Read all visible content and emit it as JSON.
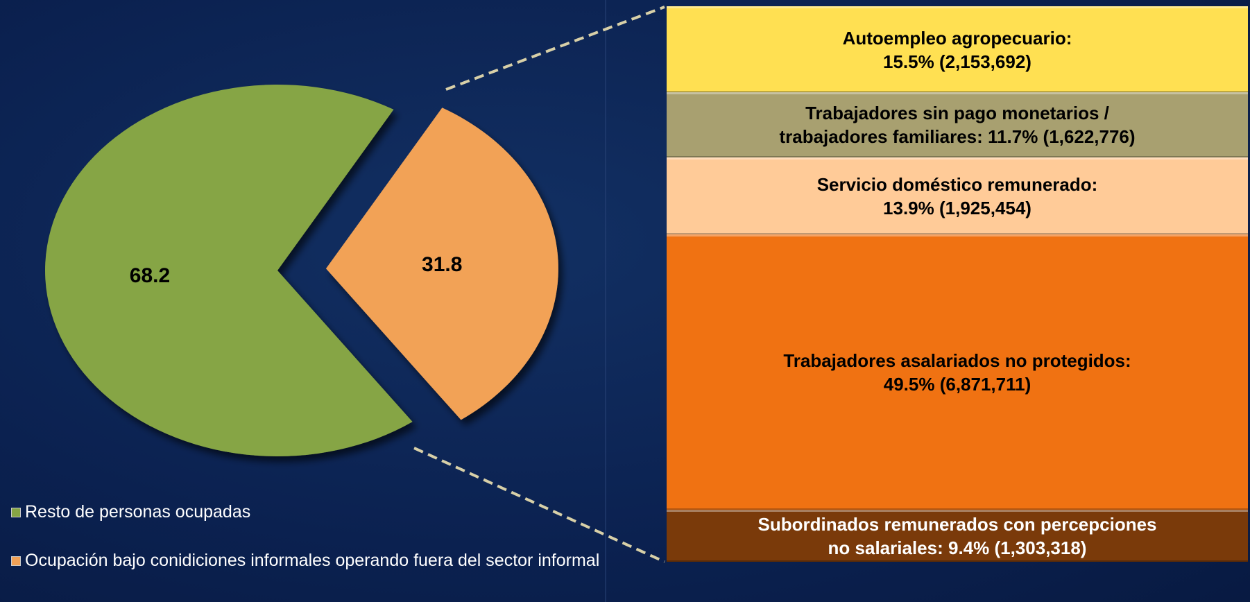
{
  "chart_data": [
    {
      "type": "pie",
      "categories": [
        "Resto de personas ocupadas",
        "Ocupación bajo conidiciones informales operando fuera del sector informal"
      ],
      "values": [
        68.2,
        31.8
      ],
      "colors": [
        "#86a544",
        "#f2a257"
      ],
      "legend": "bottom-left"
    },
    {
      "type": "bar",
      "stacked": true,
      "series": [
        {
          "name": "Autoempleo agropecuario:",
          "color": "#ffe052",
          "values": [
            15.5
          ],
          "value_labels": [
            "15.5% (2,153,692)"
          ]
        },
        {
          "name": "Trabajadores sin pago monetarios / trabajadores familiares:",
          "color": "#a8a070",
          "values": [
            11.7
          ],
          "value_labels": [
            "11.7% (1,622,776)"
          ]
        },
        {
          "name": "Servicio doméstico remunerado:",
          "color": "#ffcb98",
          "values": [
            13.9
          ],
          "value_labels": [
            "13.9% (1,925,454)"
          ]
        },
        {
          "name": "Trabajadores asalariados no protegidos:",
          "color": "#f07212",
          "values": [
            49.5
          ],
          "value_labels": [
            "49.5% (6,871,711)"
          ]
        },
        {
          "name": "Subordinados remunerados con percepciones no salariales:",
          "color": "#7a3a0a",
          "values": [
            9.4
          ],
          "value_labels": [
            "9.4% (1,303,318)"
          ]
        }
      ]
    }
  ]
}
